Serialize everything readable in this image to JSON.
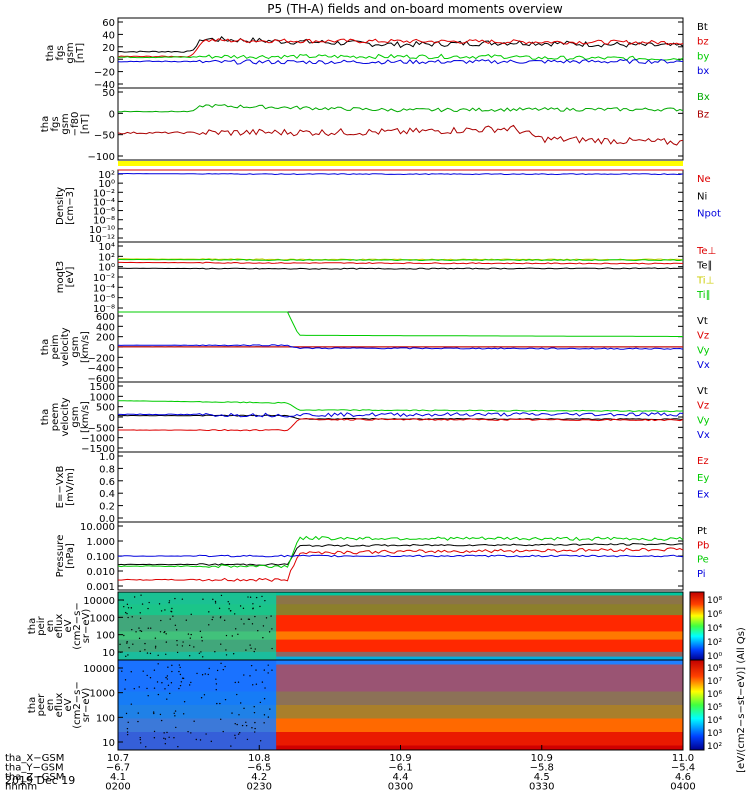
{
  "chart_data": {
    "type": "line",
    "title": "P5 (TH-A) fields and on-board moments overview",
    "date_label": "2019 Dec 19",
    "panels": [
      {
        "ylabel": [
          "tha",
          "fgs",
          "gsm",
          "[nT]"
        ],
        "ticks": [
          "60",
          "40",
          "20",
          "0",
          "−20",
          "−40"
        ],
        "ylim": [
          -40,
          60
        ],
        "series": [
          {
            "name": "Bt",
            "color": "#000000"
          },
          {
            "name": "bz",
            "color": "#dd0000"
          },
          {
            "name": "by",
            "color": "#00cc00"
          },
          {
            "name": "bx",
            "color": "#0000dd"
          }
        ]
      },
      {
        "ylabel": [
          "tha",
          "fgs",
          "gsm",
          "−f80",
          "[nT]"
        ],
        "ticks": [
          "50",
          "0",
          "−50",
          "−100"
        ],
        "ylim": [
          -130,
          75
        ],
        "series": [
          {
            "name": "Bx",
            "color": "#00aa00"
          },
          {
            "name": "Bz",
            "color": "#aa0000"
          }
        ]
      },
      {
        "ylabel": [
          "Density",
          "[cm−3]"
        ],
        "ticks": [
          "10²",
          "10⁰",
          "10⁻²",
          "10⁻⁴",
          "10⁻⁶",
          "10⁻⁸",
          "10⁻¹⁰",
          "10⁻¹²"
        ],
        "ylim": [
          -12,
          2
        ],
        "log": true,
        "series": [
          {
            "name": "Ne",
            "color": "#dd0000"
          },
          {
            "name": "Ni",
            "color": "#000000"
          },
          {
            "name": "Npot",
            "color": "#0000dd"
          }
        ]
      },
      {
        "ylabel": [
          "moqt3",
          "[eV]"
        ],
        "ticks": [
          "10⁴",
          "10²",
          "10⁰",
          "10⁻²",
          "10⁻⁴",
          "10⁻⁶",
          "10⁻⁸"
        ],
        "ylim": [
          -8,
          4
        ],
        "log": true,
        "series": [
          {
            "name": "Te⊥",
            "color": "#dd0000"
          },
          {
            "name": "Te∥",
            "color": "#000000"
          },
          {
            "name": "Ti⊥",
            "color": "#cccc00"
          },
          {
            "name": "Ti∥",
            "color": "#00cc00"
          }
        ]
      },
      {
        "ylabel": [
          "tha",
          "peim",
          "velocity",
          "gsm",
          "[km/s]"
        ],
        "ticks": [
          "600",
          "400",
          "200",
          "0",
          "−200",
          "−400",
          "−600"
        ],
        "ylim": [
          -600,
          600
        ],
        "series": [
          {
            "name": "Vt",
            "color": "#000000"
          },
          {
            "name": "Vz",
            "color": "#dd0000"
          },
          {
            "name": "Vy",
            "color": "#00cc00"
          },
          {
            "name": "Vx",
            "color": "#0000dd"
          }
        ]
      },
      {
        "ylabel": [
          "tha",
          "peem",
          "velocity",
          "gsm",
          "[km/s]"
        ],
        "ticks": [
          "1500",
          "1000",
          "500",
          "0",
          "−500",
          "−1000",
          "−1500"
        ],
        "ylim": [
          -1500,
          1500
        ],
        "series": [
          {
            "name": "Vt",
            "color": "#000000"
          },
          {
            "name": "Vz",
            "color": "#dd0000"
          },
          {
            "name": "Vy",
            "color": "#00cc00"
          },
          {
            "name": "Vx",
            "color": "#0000dd"
          }
        ]
      },
      {
        "ylabel": [
          "E=−VxB",
          "[mV/m]"
        ],
        "ticks": [
          "1.0",
          "0.8",
          "0.6",
          "0.4",
          "0.2",
          "0.0"
        ],
        "ylim": [
          0,
          1
        ],
        "series": [
          {
            "name": "Ez",
            "color": "#dd0000"
          },
          {
            "name": "Ey",
            "color": "#00cc00"
          },
          {
            "name": "Ex",
            "color": "#0000dd"
          }
        ]
      },
      {
        "ylabel": [
          "Pressure",
          "[nPa]"
        ],
        "ticks": [
          "10.000",
          "1.000",
          "0.100",
          "0.010",
          "0.001"
        ],
        "ylim": [
          -3,
          1
        ],
        "log": true,
        "series": [
          {
            "name": "Pt",
            "color": "#000000"
          },
          {
            "name": "Pb",
            "color": "#dd0000"
          },
          {
            "name": "Pe",
            "color": "#00cc00"
          },
          {
            "name": "Pi",
            "color": "#0000dd"
          }
        ]
      }
    ],
    "spectrograms": [
      {
        "ylabel": [
          "tha",
          "peir",
          "en",
          "eflux",
          "eV",
          "(cm2−s−",
          "sr−eV)"
        ],
        "ticks": [
          "10000",
          "1000",
          "100",
          "10"
        ]
      },
      {
        "ylabel": [
          "tha",
          "peer",
          "en",
          "eflux",
          "eV",
          "(cm2−s−",
          "sr−eV)"
        ],
        "ticks": [
          "10000",
          "1000",
          "100",
          "10"
        ]
      }
    ],
    "colorbar": {
      "label": "[eV/(cm2−s−st−eV)] (All Qs)",
      "top_ticks": [
        "10⁸",
        "10⁶",
        "10⁴",
        "10²",
        "10⁰"
      ],
      "bottom_ticks": [
        "10⁸",
        "10⁷",
        "10⁶",
        "10⁵",
        "10⁴",
        "10³",
        "10²"
      ]
    },
    "x_axis": {
      "row_labels": [
        "tha_X−GSM",
        "tha_Y−GSM",
        "tha_Z−GSM",
        "hhmm"
      ],
      "columns": [
        [
          "10.7",
          "−6.7",
          "4.1",
          "0200"
        ],
        [
          "10.8",
          "−6.5",
          "4.2",
          "0230"
        ],
        [
          "10.9",
          "−6.1",
          "4.4",
          "0300"
        ],
        [
          "10.9",
          "−5.8",
          "4.5",
          "0330"
        ],
        [
          "11.0",
          "−5.4",
          "4.6",
          "0400"
        ]
      ]
    }
  }
}
